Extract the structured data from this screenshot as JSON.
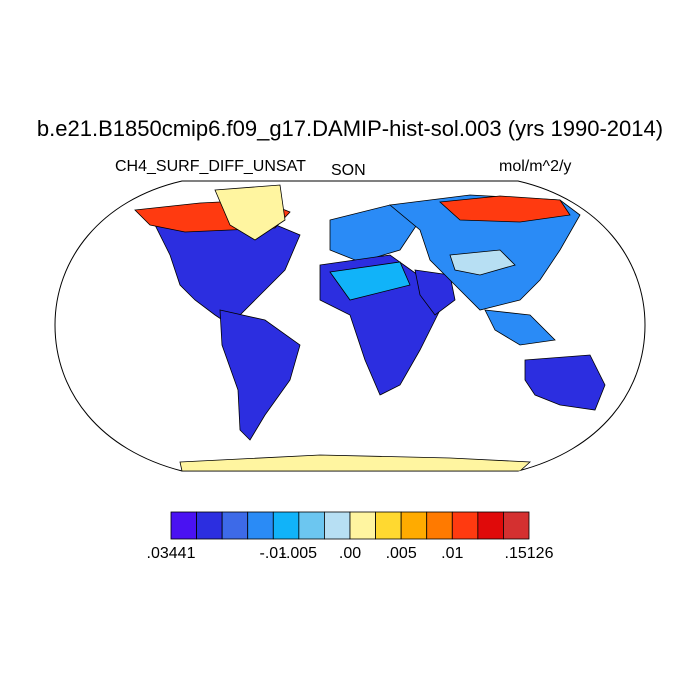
{
  "title": "b.e21.B1850cmip6.f09_g17.DAMIP-hist-sol.003 (yrs 1990-2014)",
  "left_label": "CH4_SURF_DIFF_UNSAT",
  "center_label": "SON",
  "right_label": "mol/m^2/y",
  "map": {
    "projection": "Robinson",
    "ocean_color": "#ffffff",
    "coastline_color": "#000000",
    "regions": [
      {
        "name": "North America",
        "class_index": 1
      },
      {
        "name": "Canadian Arctic",
        "class_index": 11
      },
      {
        "name": "Greenland",
        "class_index": 7
      },
      {
        "name": "South America",
        "class_index": 1
      },
      {
        "name": "Europe",
        "class_index": 3
      },
      {
        "name": "Africa",
        "class_index": 1
      },
      {
        "name": "Sahara",
        "class_index": 4
      },
      {
        "name": "Arabia",
        "class_index": 1
      },
      {
        "name": "Asia",
        "class_index": 3
      },
      {
        "name": "Siberian Arctic",
        "class_index": 11
      },
      {
        "name": "Tibetan Plateau",
        "class_index": 6
      },
      {
        "name": "Southeast Asia",
        "class_index": 3
      },
      {
        "name": "Australia",
        "class_index": 1
      },
      {
        "name": "Antarctica",
        "class_index": 7
      }
    ]
  },
  "colorbar": {
    "colors": [
      "#4a12f2",
      "#2c2ee0",
      "#3d6ae8",
      "#2a8bf6",
      "#11b3f9",
      "#6cc6f0",
      "#b7dff3",
      "#fff5a0",
      "#ffd930",
      "#ffab00",
      "#ff7a00",
      "#ff3a10",
      "#e00a0a",
      "#d43030"
    ],
    "tick_labels": [
      ".03441",
      "-.01",
      "-.005",
      ".00",
      ".005",
      ".01",
      ".15126"
    ],
    "tick_label_boundary_index": [
      0,
      4,
      5,
      7,
      9,
      11,
      14
    ]
  }
}
